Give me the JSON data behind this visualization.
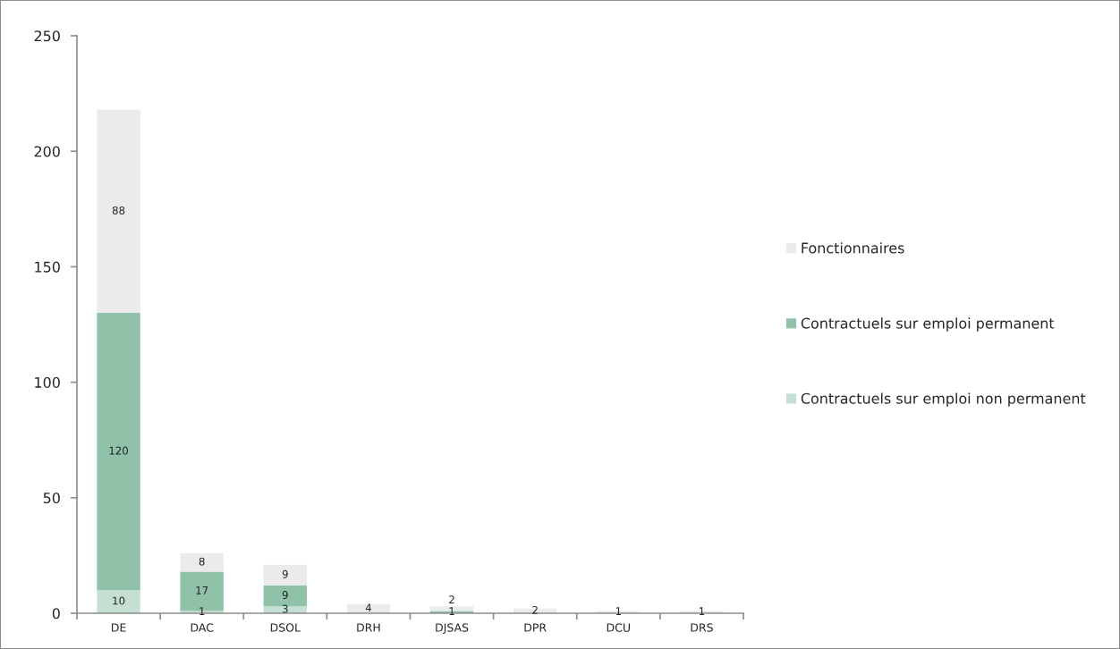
{
  "chart_data": {
    "type": "bar",
    "stacked": true,
    "categories": [
      "DE",
      "DAC",
      "DSOL",
      "DRH",
      "DJSAS",
      "DPR",
      "DCU",
      "DRS"
    ],
    "series": [
      {
        "name": "Contractuels sur emploi non permanent",
        "color": "#c5e0d3",
        "values": [
          10,
          1,
          3,
          null,
          null,
          null,
          null,
          null
        ]
      },
      {
        "name": "Contractuels sur emploi permanent",
        "color": "#90c2aa",
        "values": [
          120,
          17,
          9,
          null,
          1,
          null,
          null,
          null
        ]
      },
      {
        "name": "Fonctionnaires",
        "color": "#ebebeb",
        "values": [
          88,
          8,
          9,
          4,
          2,
          2,
          1,
          1
        ]
      }
    ],
    "ylim": [
      0,
      250
    ],
    "yticks": [
      0,
      50,
      100,
      150,
      200,
      250
    ],
    "data_labels": true,
    "legend": "right",
    "grid": false
  }
}
